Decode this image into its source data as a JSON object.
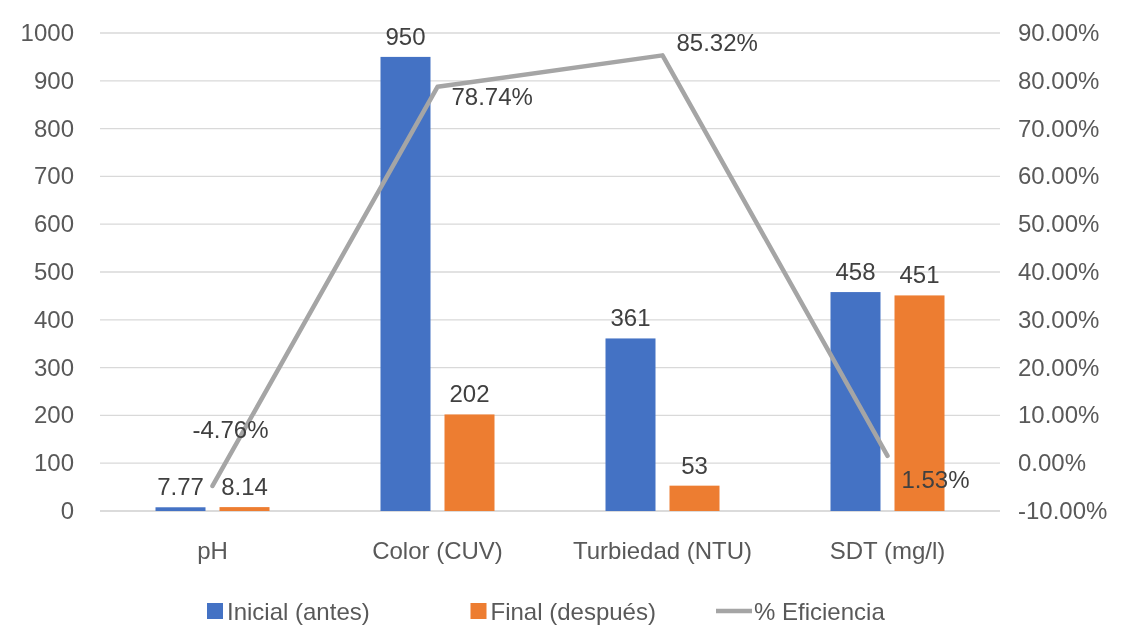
{
  "chart_data": {
    "type": "bar",
    "categories": [
      "pH",
      "Color (CUV)",
      "Turbiedad (NTU)",
      "SDT (mg/l)"
    ],
    "series": [
      {
        "name": "Inicial (antes)",
        "color": "#4472c4",
        "values": [
          7.77,
          950,
          361,
          458
        ],
        "value_labels": [
          "7.77",
          "950",
          "361",
          "458"
        ]
      },
      {
        "name": "Final (después)",
        "color": "#ed7d31",
        "values": [
          8.14,
          202,
          53,
          451
        ],
        "value_labels": [
          "8.14",
          "202",
          "53",
          "451"
        ]
      },
      {
        "name": "% Eficiencia",
        "type": "line",
        "axis": "y2",
        "color": "#a5a5a5",
        "values": [
          -4.76,
          78.74,
          85.32,
          1.53
        ],
        "value_labels": [
          "-4.76%",
          "78.74%",
          "85.32%",
          "1.53%"
        ]
      }
    ],
    "ylim": [
      0,
      1000
    ],
    "yticks": [
      0,
      100,
      200,
      300,
      400,
      500,
      600,
      700,
      800,
      900,
      1000
    ],
    "y2lim": [
      -10,
      90
    ],
    "y2ticks": [
      {
        "value": -10,
        "label": "-10.00%"
      },
      {
        "value": 0,
        "label": "0.00%"
      },
      {
        "value": 10,
        "label": "10.00%"
      },
      {
        "value": 20,
        "label": "20.00%"
      },
      {
        "value": 30,
        "label": "30.00%"
      },
      {
        "value": 40,
        "label": "40.00%"
      },
      {
        "value": 50,
        "label": "50.00%"
      },
      {
        "value": 60,
        "label": "60.00%"
      },
      {
        "value": 70,
        "label": "70.00%"
      },
      {
        "value": 80,
        "label": "80.00%"
      },
      {
        "value": 90,
        "label": "90.00%"
      }
    ],
    "grid": "y",
    "legend": "bottom",
    "marker": "none",
    "line_style": "solid"
  }
}
